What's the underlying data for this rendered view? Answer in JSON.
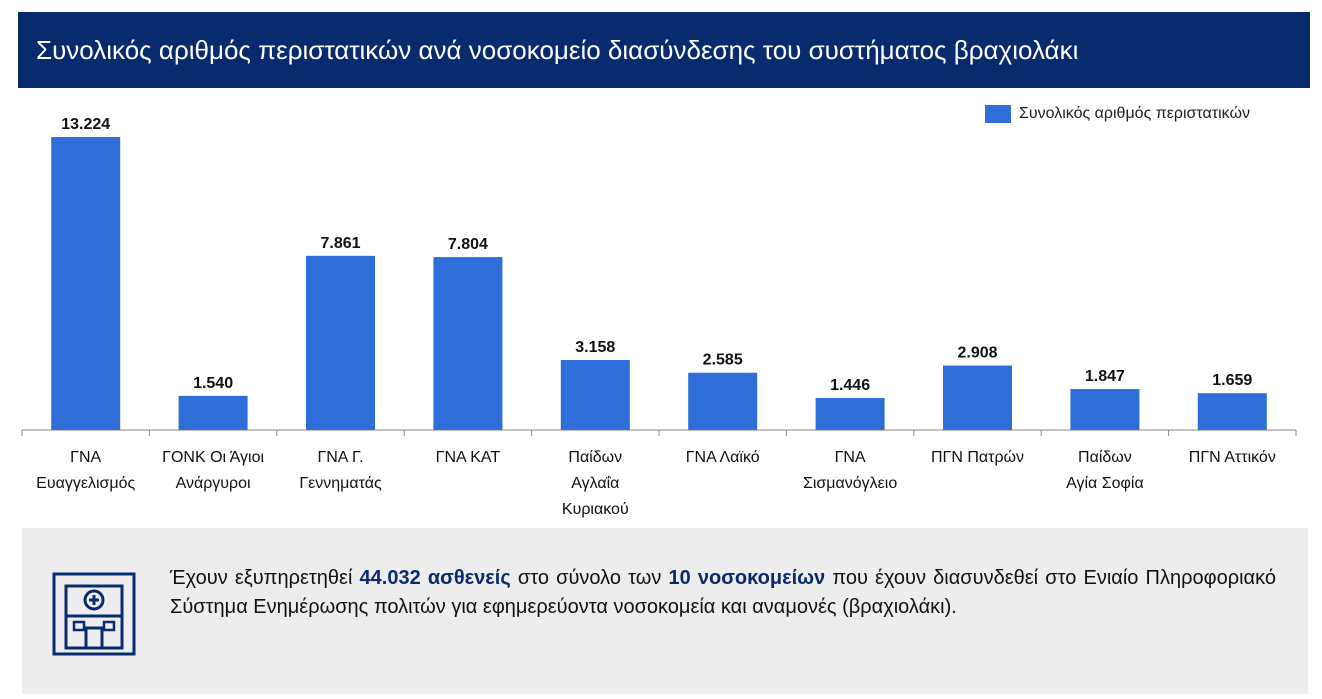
{
  "title": "Συνολικός αριθμός περιστατικών ανά νοσοκομείο διασύνδεσης του συστήματος βραχιολάκι",
  "legend": {
    "label": "Συνολικός αριθμός περιστατικών"
  },
  "colors": {
    "bar": "#2f6ed8",
    "title_bg": "#0a2a6e",
    "highlight": "#0a2a6e",
    "info_bg": "#ededed"
  },
  "chart_data": {
    "type": "bar",
    "title": "Συνολικός αριθμός περιστατικών ανά νοσοκομείο διασύνδεσης του συστήματος βραχιολάκι",
    "categories": [
      [
        "ΓΝΑ",
        "Ευαγγελισμός"
      ],
      [
        "ΓΟΝΚ Οι Άγιοι",
        "Ανάργυροι"
      ],
      [
        "ΓΝΑ Γ.",
        "Γεννηματάς"
      ],
      [
        "ΓΝΑ ΚΑΤ"
      ],
      [
        "Παίδων",
        "Αγλαΐα",
        "Κυριακού"
      ],
      [
        "ΓΝΑ Λαϊκό"
      ],
      [
        "ΓΝΑ",
        "Σισμανόγλειο"
      ],
      [
        "ΠΓΝ Πατρών"
      ],
      [
        "Παίδων",
        "Αγία Σοφία"
      ],
      [
        "ΠΓΝ Αττικόν"
      ]
    ],
    "series": [
      {
        "name": "Συνολικός αριθμός περιστατικών",
        "values": [
          13224,
          1540,
          7861,
          7804,
          3158,
          2585,
          1446,
          2908,
          1847,
          1659
        ]
      }
    ],
    "value_labels": [
      "13.224",
      "1.540",
      "7.861",
      "7.804",
      "3.158",
      "2.585",
      "1.446",
      "2.908",
      "1.847",
      "1.659"
    ],
    "ylim": [
      0,
      13224
    ],
    "grid": false,
    "legend_position": "top-right"
  },
  "info": {
    "icon": "hospital-icon",
    "parts": [
      "Έχουν εξυπηρετηθεί ",
      "44.032 ασθενείς",
      " στο σύνολο των ",
      "10 νοσοκομείων",
      " που έχουν διασυνδεθεί στο Ενιαίο Πληροφοριακό Σύστημα Ενημέρωσης πολιτών για εφημερεύοντα νοσοκομεία και αναμονές (βραχιολάκι)."
    ]
  }
}
